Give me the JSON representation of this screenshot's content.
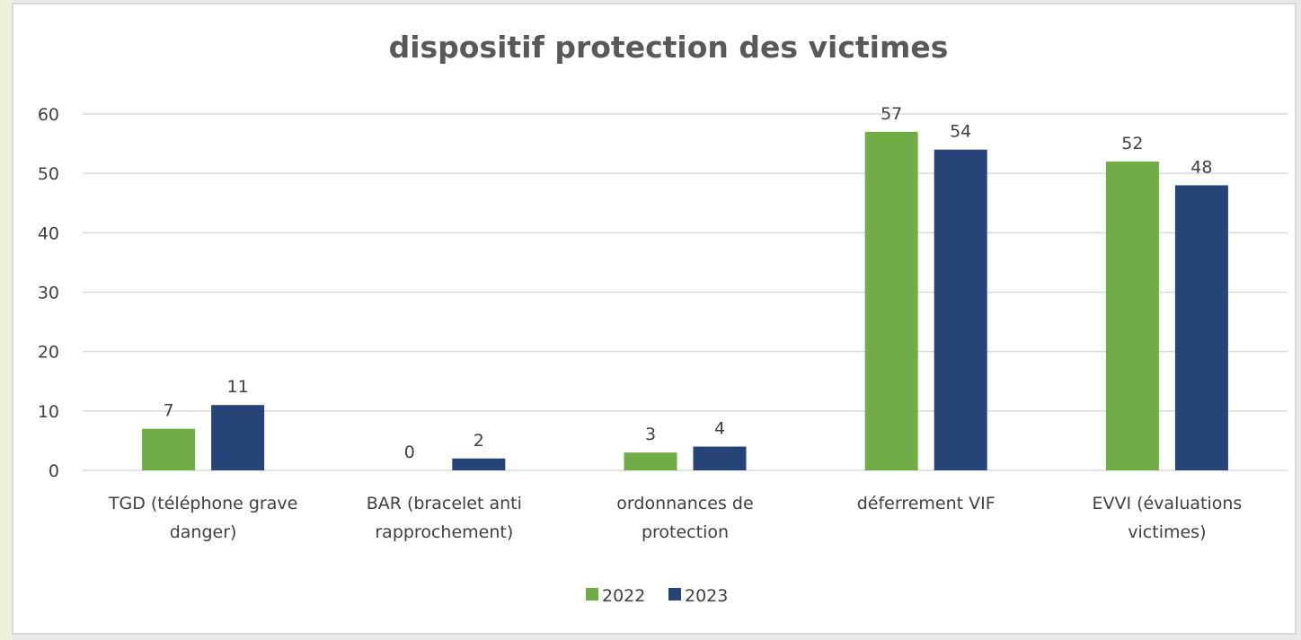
{
  "chart_data": {
    "type": "bar",
    "title": "dispositif protection des victimes",
    "categories": [
      "TGD (téléphone grave danger)",
      "BAR (bracelet anti rapprochement)",
      "ordonnances de protection",
      "déferrement VIF",
      "EVVI (évaluations victimes)"
    ],
    "series": [
      {
        "name": "2022",
        "color": "#70ad47",
        "values": [
          7,
          0,
          3,
          57,
          52
        ]
      },
      {
        "name": "2023",
        "color": "#264478",
        "values": [
          11,
          2,
          4,
          54,
          48
        ]
      }
    ],
    "ylim": [
      0,
      60
    ],
    "yticks": [
      0,
      10,
      20,
      30,
      40,
      50,
      60
    ],
    "grid": true,
    "legend": "bottom"
  }
}
